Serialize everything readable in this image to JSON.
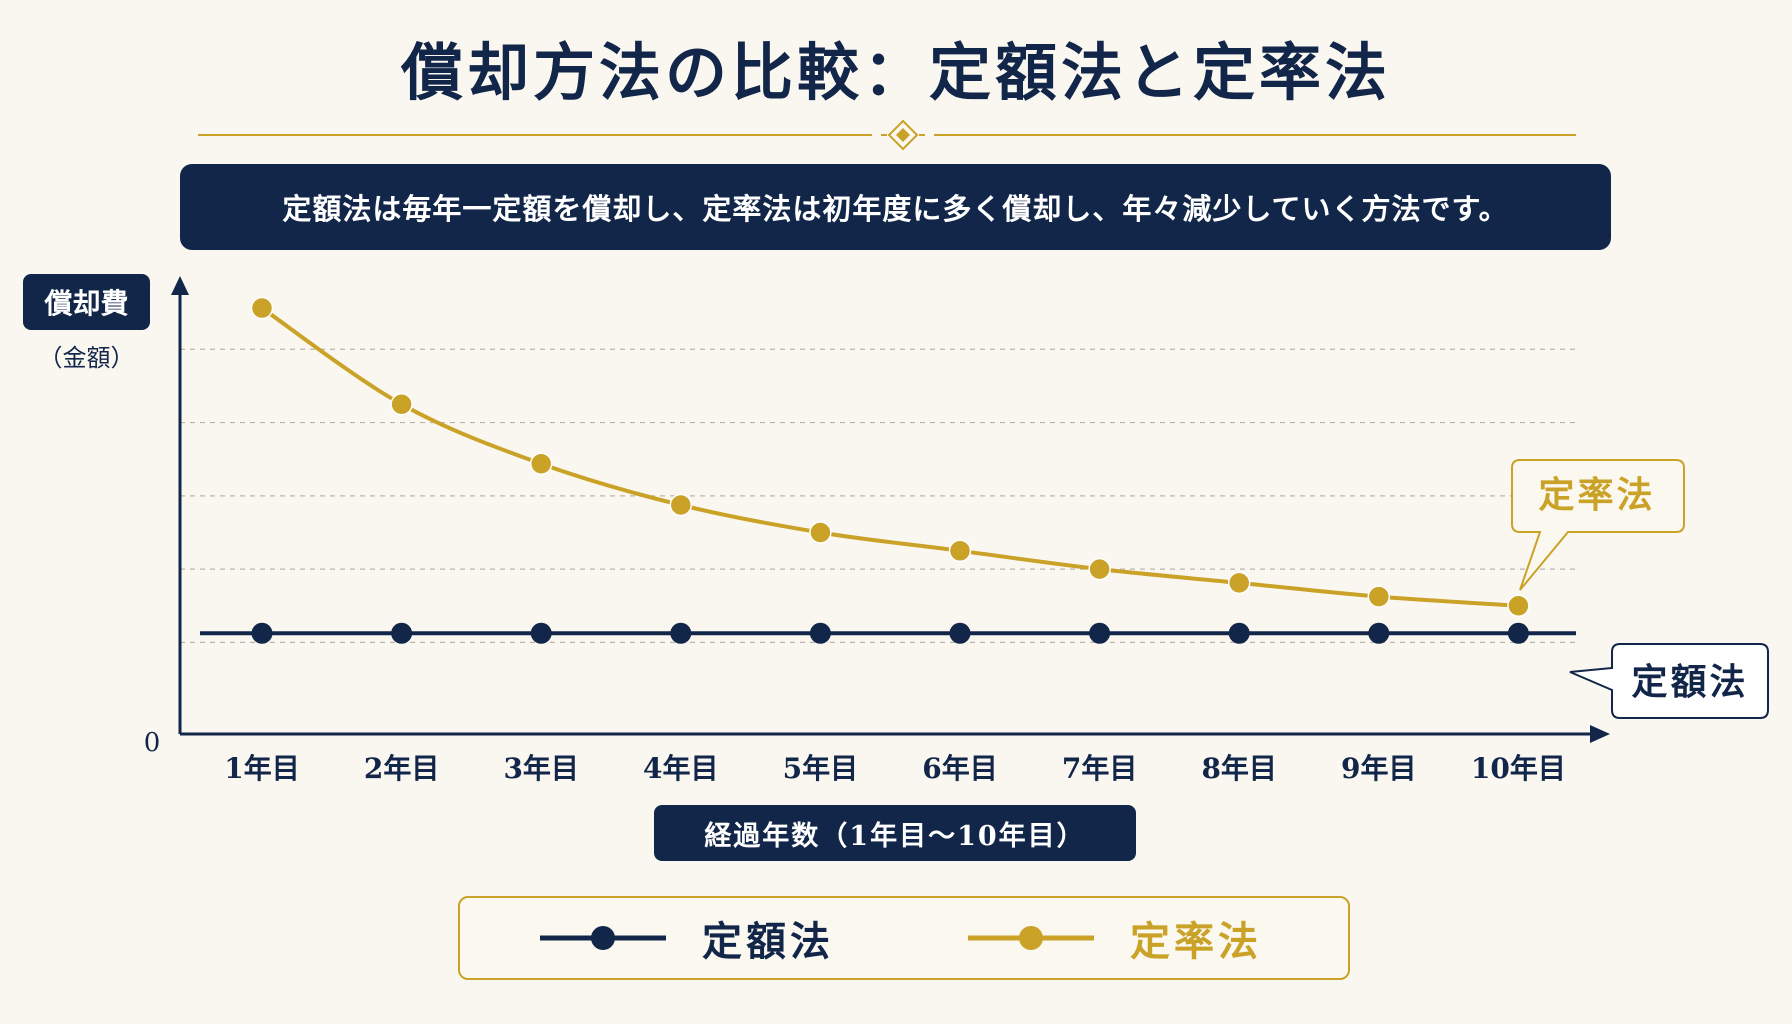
{
  "title": "償却方法の比較：定額法と定率法",
  "subtitle": "定額法は毎年一定額を償却し、定率法は初年度に多く償却し、年々減少していく方法です。",
  "colors": {
    "navy": "#12264a",
    "gold": "#c9a227",
    "background": "#faf7f0"
  },
  "chart_data": {
    "type": "line",
    "ylabel": "償却費",
    "ylabel_sub": "（金額）",
    "xlabel": "経過年数（1年目〜10年目）",
    "y_zero_label": "0",
    "categories": [
      "1年目",
      "2年目",
      "3年目",
      "4年目",
      "5年目",
      "6年目",
      "7年目",
      "8年目",
      "9年目",
      "10年目"
    ],
    "ylim": [
      0,
      100
    ],
    "grid": true,
    "series": [
      {
        "name": "定額法",
        "color": "#12264a",
        "values": [
          22,
          22,
          22,
          22,
          22,
          22,
          22,
          22,
          22,
          22
        ],
        "callout": "定額法"
      },
      {
        "name": "定率法",
        "color": "#c9a227",
        "values": [
          93,
          72,
          59,
          50,
          44,
          40,
          36,
          33,
          30,
          28
        ],
        "callout": "定率法"
      }
    ],
    "legend": {
      "position": "bottom-center",
      "items": [
        {
          "label": "定額法",
          "color": "#12264a"
        },
        {
          "label": "定率法",
          "color": "#c9a227"
        }
      ]
    }
  }
}
